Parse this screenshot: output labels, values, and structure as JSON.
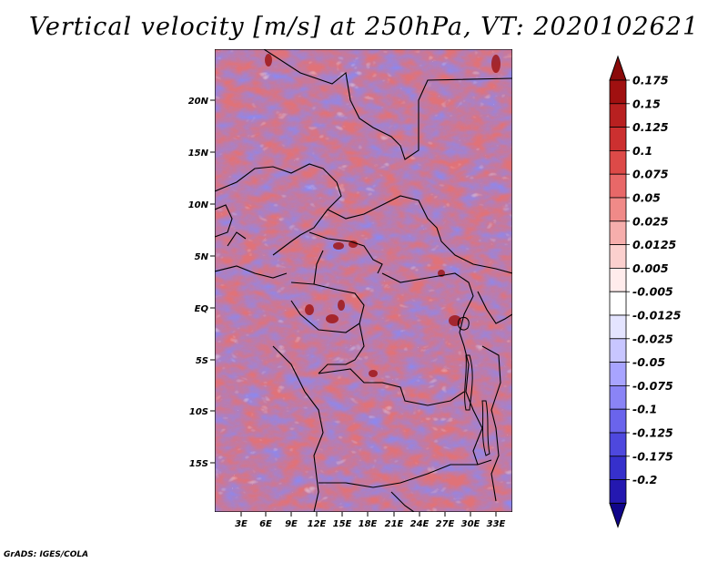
{
  "title": "Vertical velocity [m/s] at 250hPa, VT: 2020102621",
  "map": {
    "lat_labels": [
      "20N",
      "15N",
      "10N",
      "5N",
      "EQ",
      "5S",
      "10S",
      "15S"
    ],
    "lon_labels": [
      "3E",
      "6E",
      "9E",
      "12E",
      "15E",
      "18E",
      "21E",
      "24E",
      "27E",
      "30E",
      "33E"
    ]
  },
  "colorbar": {
    "levels": [
      "0.175",
      "0.15",
      "0.125",
      "0.1",
      "0.075",
      "0.05",
      "0.025",
      "0.0125",
      "0.005",
      "-0.005",
      "-0.0125",
      "-0.025",
      "-0.05",
      "-0.075",
      "-0.1",
      "-0.125",
      "-0.175",
      "-0.2"
    ],
    "colors": [
      "#a01010",
      "#b82020",
      "#cc3030",
      "#dd4a48",
      "#e86868",
      "#f08a88",
      "#f6aeac",
      "#fbd0ce",
      "#ffecec",
      "#ffffff",
      "#e4e4ff",
      "#c8c6ff",
      "#a8a4ff",
      "#8a84f6",
      "#6a64ec",
      "#4e48de",
      "#3630cc",
      "#2418b0",
      "#1a0a98"
    ],
    "top_color": "#8a0a0a",
    "bottom_color": "#10058a"
  },
  "credit": "GrADS: IGES/COLA"
}
